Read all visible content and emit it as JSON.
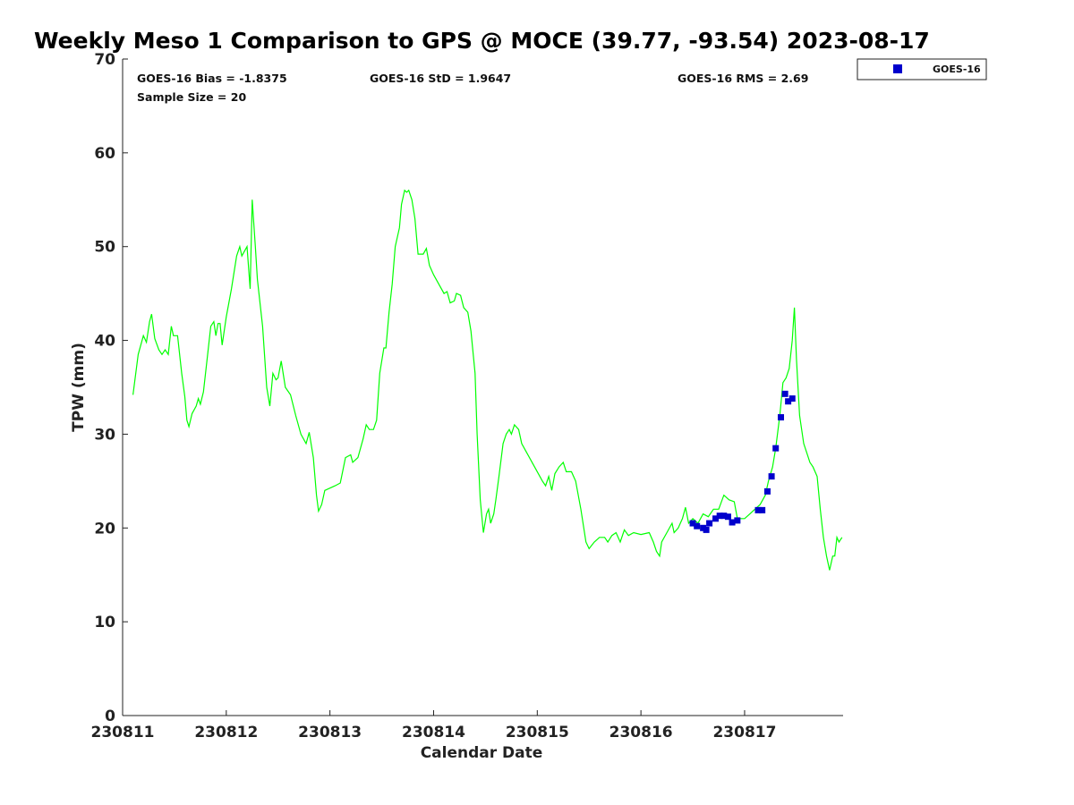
{
  "chart_data": {
    "type": "line",
    "title": "Weekly Meso 1 Comparison to GPS @ MOCE (39.77, -93.54) 2023-08-17",
    "xlabel": "Calendar Date",
    "ylabel": "TPW (mm)",
    "xlim": [
      230811,
      230817.95
    ],
    "ylim": [
      0,
      70
    ],
    "x_ticks": [
      230811,
      230812,
      230813,
      230814,
      230815,
      230816,
      230817
    ],
    "x_tick_labels": [
      "230811",
      "230812",
      "230813",
      "230814",
      "230815",
      "230816",
      "230817"
    ],
    "y_ticks": [
      0,
      10,
      20,
      30,
      40,
      50,
      60,
      70
    ],
    "y_tick_labels": [
      "0",
      "10",
      "20",
      "30",
      "40",
      "50",
      "60",
      "70"
    ],
    "grid": false,
    "stats": {
      "bias": "GOES-16 Bias = -1.8375",
      "std": "GOES-16 StD = 1.9647",
      "rms": "GOES-16 RMS = 2.69",
      "sample": "Sample Size = 20"
    },
    "legend": {
      "position": "top-right-outside",
      "entries": [
        "GOES-16"
      ]
    },
    "colors": {
      "gps": "#00ff00",
      "goes": "#0000cc"
    },
    "series": [
      {
        "name": "GPS",
        "style": "line",
        "points": [
          [
            230811.1,
            34.2
          ],
          [
            230811.15,
            38.5
          ],
          [
            230811.2,
            40.5
          ],
          [
            230811.23,
            39.8
          ],
          [
            230811.26,
            42.0
          ],
          [
            230811.28,
            42.8
          ],
          [
            230811.31,
            40.2
          ],
          [
            230811.35,
            39.0
          ],
          [
            230811.38,
            38.5
          ],
          [
            230811.41,
            39.0
          ],
          [
            230811.44,
            38.5
          ],
          [
            230811.47,
            41.5
          ],
          [
            230811.49,
            40.5
          ],
          [
            230811.53,
            40.5
          ],
          [
            230811.57,
            36.5
          ],
          [
            230811.6,
            34.0
          ],
          [
            230811.62,
            31.5
          ],
          [
            230811.64,
            30.8
          ],
          [
            230811.67,
            32.2
          ],
          [
            230811.71,
            33.0
          ],
          [
            230811.73,
            33.8
          ],
          [
            230811.75,
            33.2
          ],
          [
            230811.78,
            34.5
          ],
          [
            230811.82,
            38.5
          ],
          [
            230811.85,
            41.5
          ],
          [
            230811.88,
            42.0
          ],
          [
            230811.9,
            40.5
          ],
          [
            230811.92,
            41.8
          ],
          [
            230811.94,
            41.8
          ],
          [
            230811.96,
            39.5
          ],
          [
            230812.0,
            42.5
          ],
          [
            230812.05,
            45.5
          ],
          [
            230812.1,
            49.0
          ],
          [
            230812.13,
            50.0
          ],
          [
            230812.15,
            49.0
          ],
          [
            230812.2,
            50.0
          ],
          [
            230812.23,
            45.5
          ],
          [
            230812.25,
            55.0
          ],
          [
            230812.28,
            50.0
          ],
          [
            230812.3,
            46.5
          ],
          [
            230812.35,
            41.5
          ],
          [
            230812.39,
            35.0
          ],
          [
            230812.42,
            33.0
          ],
          [
            230812.45,
            36.5
          ],
          [
            230812.48,
            35.8
          ],
          [
            230812.5,
            36.0
          ],
          [
            230812.53,
            37.8
          ],
          [
            230812.57,
            35.0
          ],
          [
            230812.62,
            34.2
          ],
          [
            230812.67,
            32.0
          ],
          [
            230812.72,
            30.0
          ],
          [
            230812.77,
            29.0
          ],
          [
            230812.8,
            30.2
          ],
          [
            230812.84,
            27.5
          ],
          [
            230812.87,
            23.5
          ],
          [
            230812.89,
            21.8
          ],
          [
            230812.92,
            22.5
          ],
          [
            230812.95,
            24.0
          ],
          [
            230813.05,
            24.5
          ],
          [
            230813.1,
            24.8
          ],
          [
            230813.15,
            27.5
          ],
          [
            230813.2,
            27.8
          ],
          [
            230813.22,
            27.0
          ],
          [
            230813.27,
            27.5
          ],
          [
            230813.32,
            29.5
          ],
          [
            230813.35,
            31.0
          ],
          [
            230813.38,
            30.5
          ],
          [
            230813.42,
            30.5
          ],
          [
            230813.45,
            31.5
          ],
          [
            230813.48,
            36.5
          ],
          [
            230813.52,
            39.2
          ],
          [
            230813.54,
            39.2
          ],
          [
            230813.57,
            43.0
          ],
          [
            230813.6,
            46.0
          ],
          [
            230813.63,
            50.0
          ],
          [
            230813.67,
            52.0
          ],
          [
            230813.69,
            54.5
          ],
          [
            230813.72,
            56.0
          ],
          [
            230813.74,
            55.8
          ],
          [
            230813.76,
            56.0
          ],
          [
            230813.79,
            55.0
          ],
          [
            230813.82,
            53.0
          ],
          [
            230813.85,
            49.2
          ],
          [
            230813.9,
            49.2
          ],
          [
            230813.93,
            49.8
          ],
          [
            230813.96,
            48.0
          ],
          [
            230814.0,
            47.0
          ],
          [
            230814.05,
            46.0
          ],
          [
            230814.1,
            45.0
          ],
          [
            230814.13,
            45.2
          ],
          [
            230814.16,
            44.0
          ],
          [
            230814.2,
            44.2
          ],
          [
            230814.22,
            45.0
          ],
          [
            230814.26,
            44.8
          ],
          [
            230814.29,
            43.5
          ],
          [
            230814.33,
            43.0
          ],
          [
            230814.36,
            41.0
          ],
          [
            230814.4,
            36.5
          ],
          [
            230814.42,
            30.0
          ],
          [
            230814.45,
            23.0
          ],
          [
            230814.48,
            19.5
          ],
          [
            230814.51,
            21.5
          ],
          [
            230814.53,
            22.0
          ],
          [
            230814.55,
            20.5
          ],
          [
            230814.58,
            21.5
          ],
          [
            230814.6,
            23.0
          ],
          [
            230814.63,
            25.5
          ],
          [
            230814.67,
            29.0
          ],
          [
            230814.7,
            30.0
          ],
          [
            230814.73,
            30.5
          ],
          [
            230814.75,
            30.0
          ],
          [
            230814.78,
            31.0
          ],
          [
            230814.82,
            30.5
          ],
          [
            230814.85,
            29.0
          ],
          [
            230814.9,
            28.0
          ],
          [
            230814.95,
            27.0
          ],
          [
            230815.0,
            26.0
          ],
          [
            230815.05,
            25.0
          ],
          [
            230815.08,
            24.5
          ],
          [
            230815.11,
            25.5
          ],
          [
            230815.14,
            24.0
          ],
          [
            230815.17,
            25.8
          ],
          [
            230815.21,
            26.5
          ],
          [
            230815.25,
            27.0
          ],
          [
            230815.28,
            26.0
          ],
          [
            230815.33,
            26.0
          ],
          [
            230815.37,
            25.0
          ],
          [
            230815.42,
            22.0
          ],
          [
            230815.47,
            18.5
          ],
          [
            230815.5,
            17.8
          ],
          [
            230815.55,
            18.5
          ],
          [
            230815.6,
            19.0
          ],
          [
            230815.65,
            19.0
          ],
          [
            230815.68,
            18.5
          ],
          [
            230815.72,
            19.2
          ],
          [
            230815.76,
            19.5
          ],
          [
            230815.8,
            18.5
          ],
          [
            230815.84,
            19.8
          ],
          [
            230815.88,
            19.2
          ],
          [
            230815.93,
            19.5
          ],
          [
            230816.0,
            19.3
          ],
          [
            230816.08,
            19.5
          ],
          [
            230816.12,
            18.5
          ],
          [
            230816.15,
            17.5
          ],
          [
            230816.18,
            17.0
          ],
          [
            230816.2,
            18.5
          ],
          [
            230816.25,
            19.5
          ],
          [
            230816.3,
            20.5
          ],
          [
            230816.32,
            19.5
          ],
          [
            230816.36,
            20.0
          ],
          [
            230816.4,
            21.0
          ],
          [
            230816.43,
            22.2
          ],
          [
            230816.46,
            20.5
          ],
          [
            230816.5,
            21.0
          ],
          [
            230816.55,
            20.5
          ],
          [
            230816.6,
            21.5
          ],
          [
            230816.65,
            21.2
          ],
          [
            230816.7,
            22.0
          ],
          [
            230816.75,
            22.0
          ],
          [
            230816.8,
            23.5
          ],
          [
            230816.85,
            23.0
          ],
          [
            230816.9,
            22.8
          ],
          [
            230816.93,
            21.0
          ],
          [
            230817.0,
            21.0
          ],
          [
            230817.05,
            21.5
          ],
          [
            230817.1,
            22.0
          ],
          [
            230817.15,
            22.5
          ],
          [
            230817.2,
            23.5
          ],
          [
            230817.23,
            25.0
          ],
          [
            230817.27,
            26.5
          ],
          [
            230817.3,
            28.5
          ],
          [
            230817.34,
            32.0
          ],
          [
            230817.37,
            35.5
          ],
          [
            230817.4,
            36.0
          ],
          [
            230817.43,
            37.0
          ],
          [
            230817.46,
            40.0
          ],
          [
            230817.48,
            43.5
          ],
          [
            230817.5,
            38.0
          ],
          [
            230817.53,
            32.0
          ],
          [
            230817.57,
            29.0
          ],
          [
            230817.6,
            28.0
          ],
          [
            230817.63,
            27.0
          ],
          [
            230817.66,
            26.5
          ],
          [
            230817.7,
            25.5
          ],
          [
            230817.73,
            22.0
          ],
          [
            230817.76,
            19.0
          ],
          [
            230817.79,
            17.0
          ],
          [
            230817.82,
            15.5
          ],
          [
            230817.85,
            17.0
          ],
          [
            230817.87,
            17.0
          ],
          [
            230817.89,
            19.0
          ],
          [
            230817.91,
            18.5
          ],
          [
            230817.94,
            19.0
          ]
        ]
      },
      {
        "name": "GOES-16",
        "style": "marker",
        "points": [
          [
            230816.5,
            20.5
          ],
          [
            230816.54,
            20.2
          ],
          [
            230816.6,
            20.0
          ],
          [
            230816.63,
            19.8
          ],
          [
            230816.66,
            20.5
          ],
          [
            230816.72,
            21.0
          ],
          [
            230816.76,
            21.3
          ],
          [
            230816.8,
            21.3
          ],
          [
            230816.84,
            21.2
          ],
          [
            230816.88,
            20.6
          ],
          [
            230816.93,
            20.8
          ],
          [
            230817.13,
            21.9
          ],
          [
            230817.17,
            21.9
          ],
          [
            230817.22,
            23.9
          ],
          [
            230817.26,
            25.5
          ],
          [
            230817.3,
            28.5
          ],
          [
            230817.35,
            31.8
          ],
          [
            230817.39,
            34.3
          ],
          [
            230817.42,
            33.5
          ],
          [
            230817.46,
            33.8
          ]
        ]
      }
    ]
  }
}
